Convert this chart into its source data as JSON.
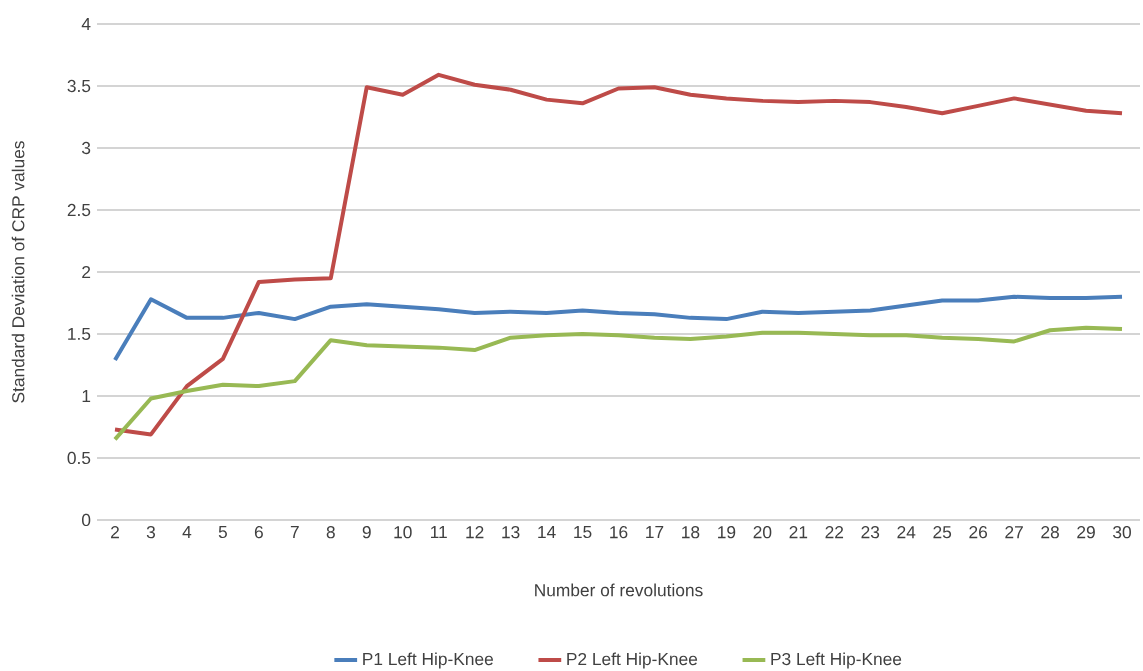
{
  "chart_data": {
    "type": "line",
    "xlabel": "Number of revolutions",
    "ylabel": "Standard Deviation of CRP values",
    "categories": [
      "2",
      "3",
      "4",
      "5",
      "6",
      "7",
      "8",
      "9",
      "10",
      "11",
      "12",
      "13",
      "14",
      "15",
      "16",
      "17",
      "18",
      "19",
      "20",
      "21",
      "22",
      "23",
      "24",
      "25",
      "26",
      "27",
      "28",
      "29",
      "30"
    ],
    "series": [
      {
        "name": "P1 Left Hip-Knee",
        "color": "#4a7ebb",
        "values": [
          1.29,
          1.78,
          1.63,
          1.63,
          1.67,
          1.62,
          1.72,
          1.74,
          1.72,
          1.7,
          1.67,
          1.68,
          1.67,
          1.69,
          1.67,
          1.66,
          1.63,
          1.62,
          1.68,
          1.67,
          1.68,
          1.69,
          1.73,
          1.77,
          1.77,
          1.8,
          1.79,
          1.79,
          1.8
        ]
      },
      {
        "name": "P2 Left Hip-Knee",
        "color": "#be4b48",
        "values": [
          0.73,
          0.69,
          1.08,
          1.3,
          1.92,
          1.94,
          1.95,
          3.49,
          3.43,
          3.59,
          3.51,
          3.47,
          3.39,
          3.36,
          3.48,
          3.49,
          3.43,
          3.4,
          3.38,
          3.37,
          3.38,
          3.37,
          3.33,
          3.28,
          3.34,
          3.4,
          3.35,
          3.3,
          3.28
        ]
      },
      {
        "name": "P3 Left Hip-Knee",
        "color": "#98b954",
        "values": [
          0.65,
          0.98,
          1.04,
          1.09,
          1.08,
          1.12,
          1.45,
          1.41,
          1.4,
          1.39,
          1.37,
          1.47,
          1.49,
          1.5,
          1.49,
          1.47,
          1.46,
          1.48,
          1.51,
          1.51,
          1.5,
          1.49,
          1.49,
          1.47,
          1.46,
          1.44,
          1.53,
          1.55,
          1.54
        ]
      }
    ],
    "ylim": [
      0,
      4
    ],
    "yticks": [
      0,
      0.5,
      1,
      1.5,
      2,
      2.5,
      3,
      3.5,
      4
    ],
    "grid": "y",
    "legend": "bottom",
    "marker": "none",
    "line_style": "solid"
  }
}
